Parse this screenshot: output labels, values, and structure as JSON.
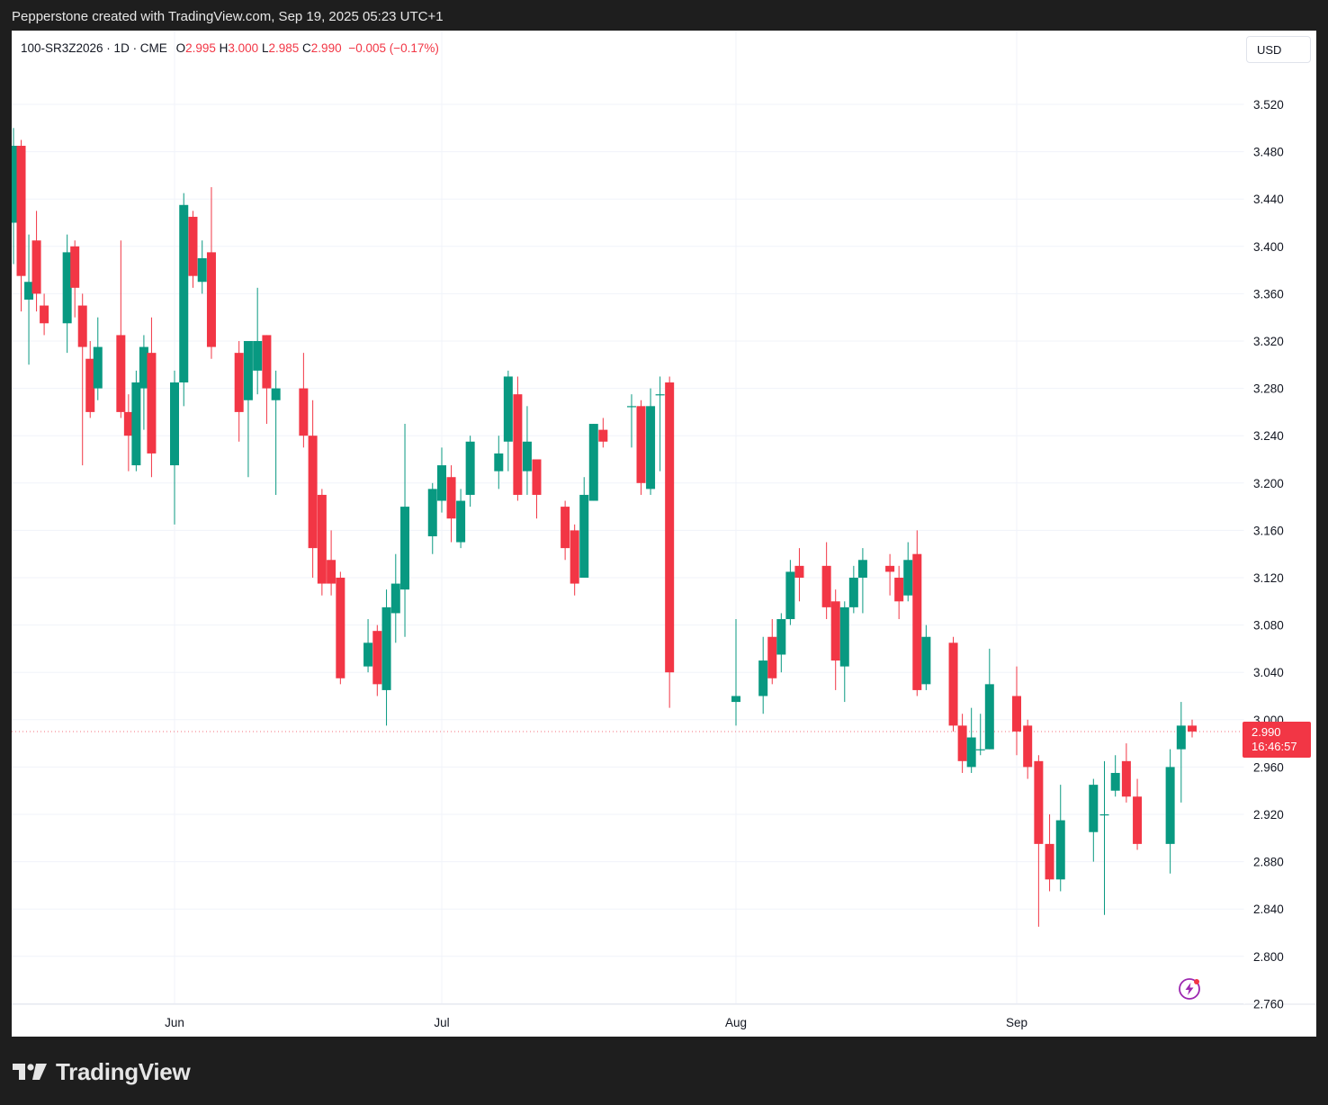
{
  "header": {
    "caption": "Pepperstone created with TradingView.com, Sep 19, 2025 05:23 UTC+1"
  },
  "legend": {
    "symbol": "100-SR3Z2026 · 1D · CME",
    "open_label": "O",
    "open": "2.995",
    "high_label": "H",
    "high": "3.000",
    "low_label": "L",
    "low": "2.985",
    "close_label": "C",
    "close": "2.990",
    "change": "−0.005 (−0.17%)"
  },
  "currency": "USD",
  "last_price": {
    "value": "2.990",
    "countdown": "16:46:57"
  },
  "brand": {
    "name": "TradingView"
  },
  "colors": {
    "up": "#089981",
    "down": "#f23645",
    "grid": "#f0f3fa",
    "text": "#131722",
    "background": "#ffffff"
  },
  "icons": {
    "logo": "tradingview-logo-icon",
    "bolt": "lightning-bolt-icon"
  },
  "chart_data": {
    "type": "candlestick",
    "title": "100-SR3Z2026 · 1D · CME",
    "ylim": [
      2.76,
      3.56
    ],
    "y_ticks": [
      "3.520",
      "3.480",
      "3.440",
      "3.400",
      "3.360",
      "3.320",
      "3.280",
      "3.240",
      "3.200",
      "3.160",
      "3.120",
      "3.080",
      "3.040",
      "3.000",
      "2.960",
      "2.920",
      "2.880",
      "2.840",
      "2.800",
      "2.760"
    ],
    "x_ticks": [
      {
        "label": "Jun",
        "date": "2025-06-02"
      },
      {
        "label": "Jul",
        "date": "2025-07-01"
      },
      {
        "label": "Aug",
        "date": "2025-08-01"
      },
      {
        "label": "Sep",
        "date": "2025-09-01"
      }
    ],
    "grid": true,
    "candles": [
      {
        "date": "2025-05-12",
        "o": 3.42,
        "h": 3.5,
        "l": 3.385,
        "c": 3.485
      },
      {
        "date": "2025-05-13",
        "o": 3.485,
        "h": 3.49,
        "l": 3.345,
        "c": 3.375
      },
      {
        "date": "2025-05-14",
        "o": 3.355,
        "h": 3.41,
        "l": 3.3,
        "c": 3.37
      },
      {
        "date": "2025-05-15",
        "o": 3.405,
        "h": 3.43,
        "l": 3.345,
        "c": 3.36
      },
      {
        "date": "2025-05-16",
        "o": 3.35,
        "h": 3.36,
        "l": 3.325,
        "c": 3.335
      },
      {
        "date": "2025-05-19",
        "o": 3.335,
        "h": 3.41,
        "l": 3.31,
        "c": 3.395
      },
      {
        "date": "2025-05-20",
        "o": 3.4,
        "h": 3.405,
        "l": 3.34,
        "c": 3.365
      },
      {
        "date": "2025-05-21",
        "o": 3.35,
        "h": 3.36,
        "l": 3.215,
        "c": 3.315
      },
      {
        "date": "2025-05-22",
        "o": 3.305,
        "h": 3.32,
        "l": 3.255,
        "c": 3.26
      },
      {
        "date": "2025-05-23",
        "o": 3.28,
        "h": 3.34,
        "l": 3.27,
        "c": 3.315
      },
      {
        "date": "2025-05-26",
        "o": 3.325,
        "h": 3.405,
        "l": 3.255,
        "c": 3.26
      },
      {
        "date": "2025-05-27",
        "o": 3.26,
        "h": 3.275,
        "l": 3.21,
        "c": 3.24
      },
      {
        "date": "2025-05-28",
        "o": 3.215,
        "h": 3.295,
        "l": 3.21,
        "c": 3.285
      },
      {
        "date": "2025-05-29",
        "o": 3.28,
        "h": 3.325,
        "l": 3.245,
        "c": 3.315
      },
      {
        "date": "2025-05-30",
        "o": 3.31,
        "h": 3.34,
        "l": 3.205,
        "c": 3.225
      },
      {
        "date": "2025-06-02",
        "o": 3.215,
        "h": 3.295,
        "l": 3.165,
        "c": 3.285
      },
      {
        "date": "2025-06-03",
        "o": 3.285,
        "h": 3.445,
        "l": 3.265,
        "c": 3.435
      },
      {
        "date": "2025-06-04",
        "o": 3.425,
        "h": 3.43,
        "l": 3.365,
        "c": 3.375
      },
      {
        "date": "2025-06-05",
        "o": 3.37,
        "h": 3.405,
        "l": 3.36,
        "c": 3.39
      },
      {
        "date": "2025-06-06",
        "o": 3.395,
        "h": 3.45,
        "l": 3.305,
        "c": 3.315
      },
      {
        "date": "2025-06-09",
        "o": 3.31,
        "h": 3.32,
        "l": 3.235,
        "c": 3.26
      },
      {
        "date": "2025-06-10",
        "o": 3.27,
        "h": 3.32,
        "l": 3.205,
        "c": 3.32
      },
      {
        "date": "2025-06-11",
        "o": 3.295,
        "h": 3.365,
        "l": 3.275,
        "c": 3.32
      },
      {
        "date": "2025-06-12",
        "o": 3.325,
        "h": 3.325,
        "l": 3.25,
        "c": 3.28
      },
      {
        "date": "2025-06-13",
        "o": 3.27,
        "h": 3.295,
        "l": 3.19,
        "c": 3.28
      },
      {
        "date": "2025-06-16",
        "o": 3.28,
        "h": 3.31,
        "l": 3.23,
        "c": 3.24
      },
      {
        "date": "2025-06-17",
        "o": 3.24,
        "h": 3.27,
        "l": 3.12,
        "c": 3.145
      },
      {
        "date": "2025-06-18",
        "o": 3.19,
        "h": 3.195,
        "l": 3.105,
        "c": 3.115
      },
      {
        "date": "2025-06-19",
        "o": 3.135,
        "h": 3.16,
        "l": 3.105,
        "c": 3.115
      },
      {
        "date": "2025-06-20",
        "o": 3.12,
        "h": 3.125,
        "l": 3.03,
        "c": 3.035
      },
      {
        "date": "2025-06-23",
        "o": 3.045,
        "h": 3.085,
        "l": 3.04,
        "c": 3.065
      },
      {
        "date": "2025-06-24",
        "o": 3.075,
        "h": 3.08,
        "l": 3.02,
        "c": 3.03
      },
      {
        "date": "2025-06-25",
        "o": 3.025,
        "h": 3.11,
        "l": 2.995,
        "c": 3.095
      },
      {
        "date": "2025-06-26",
        "o": 3.09,
        "h": 3.14,
        "l": 3.065,
        "c": 3.115
      },
      {
        "date": "2025-06-27",
        "o": 3.11,
        "h": 3.25,
        "l": 3.07,
        "c": 3.18
      },
      {
        "date": "2025-06-30",
        "o": 3.155,
        "h": 3.2,
        "l": 3.14,
        "c": 3.195
      },
      {
        "date": "2025-07-01",
        "o": 3.185,
        "h": 3.23,
        "l": 3.175,
        "c": 3.215
      },
      {
        "date": "2025-07-02",
        "o": 3.205,
        "h": 3.215,
        "l": 3.15,
        "c": 3.17
      },
      {
        "date": "2025-07-03",
        "o": 3.15,
        "h": 3.195,
        "l": 3.145,
        "c": 3.185
      },
      {
        "date": "2025-07-04",
        "o": 3.19,
        "h": 3.24,
        "l": 3.18,
        "c": 3.235
      },
      {
        "date": "2025-07-07",
        "o": 3.21,
        "h": 3.24,
        "l": 3.195,
        "c": 3.225
      },
      {
        "date": "2025-07-08",
        "o": 3.235,
        "h": 3.295,
        "l": 3.21,
        "c": 3.29
      },
      {
        "date": "2025-07-09",
        "o": 3.275,
        "h": 3.29,
        "l": 3.185,
        "c": 3.19
      },
      {
        "date": "2025-07-10",
        "o": 3.21,
        "h": 3.265,
        "l": 3.19,
        "c": 3.235
      },
      {
        "date": "2025-07-11",
        "o": 3.22,
        "h": 3.22,
        "l": 3.17,
        "c": 3.19
      },
      {
        "date": "2025-07-14",
        "o": 3.18,
        "h": 3.185,
        "l": 3.135,
        "c": 3.145
      },
      {
        "date": "2025-07-15",
        "o": 3.16,
        "h": 3.165,
        "l": 3.105,
        "c": 3.115
      },
      {
        "date": "2025-07-16",
        "o": 3.12,
        "h": 3.205,
        "l": 3.12,
        "c": 3.19
      },
      {
        "date": "2025-07-17",
        "o": 3.185,
        "h": 3.25,
        "l": 3.185,
        "c": 3.25
      },
      {
        "date": "2025-07-18",
        "o": 3.245,
        "h": 3.255,
        "l": 3.23,
        "c": 3.235
      },
      {
        "date": "2025-07-21",
        "o": 3.265,
        "h": 3.275,
        "l": 3.23,
        "c": 3.265
      },
      {
        "date": "2025-07-22",
        "o": 3.265,
        "h": 3.27,
        "l": 3.19,
        "c": 3.2
      },
      {
        "date": "2025-07-23",
        "o": 3.195,
        "h": 3.28,
        "l": 3.19,
        "c": 3.265
      },
      {
        "date": "2025-07-24",
        "o": 3.275,
        "h": 3.29,
        "l": 3.21,
        "c": 3.275
      },
      {
        "date": "2025-07-25",
        "o": 3.285,
        "h": 3.29,
        "l": 3.01,
        "c": 3.04
      },
      {
        "date": "2025-08-01",
        "o": 3.015,
        "h": 3.085,
        "l": 2.995,
        "c": 3.02
      },
      {
        "date": "2025-08-04",
        "o": 3.02,
        "h": 3.07,
        "l": 3.005,
        "c": 3.05
      },
      {
        "date": "2025-08-05",
        "o": 3.07,
        "h": 3.085,
        "l": 3.03,
        "c": 3.035
      },
      {
        "date": "2025-08-06",
        "o": 3.055,
        "h": 3.09,
        "l": 3.04,
        "c": 3.085
      },
      {
        "date": "2025-08-07",
        "o": 3.085,
        "h": 3.135,
        "l": 3.08,
        "c": 3.125
      },
      {
        "date": "2025-08-08",
        "o": 3.13,
        "h": 3.145,
        "l": 3.1,
        "c": 3.12
      },
      {
        "date": "2025-08-11",
        "o": 3.13,
        "h": 3.15,
        "l": 3.085,
        "c": 3.095
      },
      {
        "date": "2025-08-12",
        "o": 3.1,
        "h": 3.11,
        "l": 3.025,
        "c": 3.05
      },
      {
        "date": "2025-08-13",
        "o": 3.045,
        "h": 3.1,
        "l": 3.015,
        "c": 3.095
      },
      {
        "date": "2025-08-14",
        "o": 3.095,
        "h": 3.13,
        "l": 3.09,
        "c": 3.12
      },
      {
        "date": "2025-08-15",
        "o": 3.12,
        "h": 3.145,
        "l": 3.09,
        "c": 3.135
      },
      {
        "date": "2025-08-18",
        "o": 3.13,
        "h": 3.14,
        "l": 3.105,
        "c": 3.125
      },
      {
        "date": "2025-08-19",
        "o": 3.12,
        "h": 3.13,
        "l": 3.085,
        "c": 3.1
      },
      {
        "date": "2025-08-20",
        "o": 3.105,
        "h": 3.15,
        "l": 3.1,
        "c": 3.135
      },
      {
        "date": "2025-08-21",
        "o": 3.14,
        "h": 3.16,
        "l": 3.02,
        "c": 3.025
      },
      {
        "date": "2025-08-22",
        "o": 3.03,
        "h": 3.08,
        "l": 3.025,
        "c": 3.07
      },
      {
        "date": "2025-08-25",
        "o": 3.065,
        "h": 3.07,
        "l": 2.99,
        "c": 2.995
      },
      {
        "date": "2025-08-26",
        "o": 2.995,
        "h": 3.005,
        "l": 2.955,
        "c": 2.965
      },
      {
        "date": "2025-08-27",
        "o": 2.96,
        "h": 3.01,
        "l": 2.955,
        "c": 2.985
      },
      {
        "date": "2025-08-28",
        "o": 2.975,
        "h": 3.005,
        "l": 2.97,
        "c": 2.975
      },
      {
        "date": "2025-08-29",
        "o": 2.975,
        "h": 3.06,
        "l": 2.975,
        "c": 3.03
      },
      {
        "date": "2025-09-01",
        "o": 3.02,
        "h": 3.045,
        "l": 2.97,
        "c": 2.99
      },
      {
        "date": "2025-09-02",
        "o": 2.995,
        "h": 3.0,
        "l": 2.95,
        "c": 2.96
      },
      {
        "date": "2025-09-03",
        "o": 2.965,
        "h": 2.97,
        "l": 2.825,
        "c": 2.895
      },
      {
        "date": "2025-09-04",
        "o": 2.895,
        "h": 2.92,
        "l": 2.855,
        "c": 2.865
      },
      {
        "date": "2025-09-05",
        "o": 2.865,
        "h": 2.945,
        "l": 2.855,
        "c": 2.915
      },
      {
        "date": "2025-09-08",
        "o": 2.905,
        "h": 2.95,
        "l": 2.88,
        "c": 2.945
      },
      {
        "date": "2025-09-09",
        "o": 2.92,
        "h": 2.965,
        "l": 2.835,
        "c": 2.92
      },
      {
        "date": "2025-09-10",
        "o": 2.94,
        "h": 2.97,
        "l": 2.935,
        "c": 2.955
      },
      {
        "date": "2025-09-11",
        "o": 2.965,
        "h": 2.98,
        "l": 2.93,
        "c": 2.935
      },
      {
        "date": "2025-09-12",
        "o": 2.935,
        "h": 2.95,
        "l": 2.89,
        "c": 2.895
      },
      {
        "date": "2025-09-15",
        "o": 2.895,
        "h": 2.975,
        "l": 2.87,
        "c": 2.96
      },
      {
        "date": "2025-09-16",
        "o": 2.975,
        "h": 3.015,
        "l": 2.93,
        "c": 2.995
      },
      {
        "date": "2025-09-17",
        "o": 2.995,
        "h": 3.0,
        "l": 2.985,
        "c": 2.99
      }
    ]
  }
}
